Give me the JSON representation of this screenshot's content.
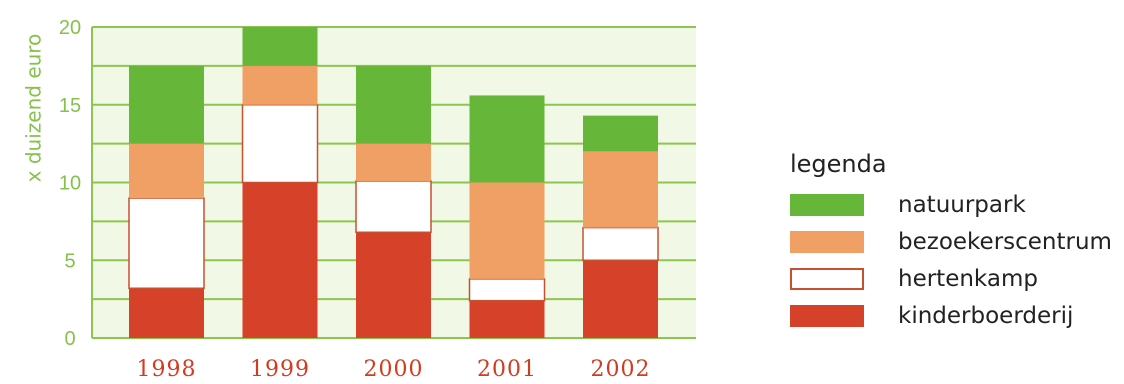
{
  "chart_data": {
    "type": "bar",
    "stacked": true,
    "categories": [
      "1998",
      "1999",
      "2000",
      "2001",
      "2002"
    ],
    "series": [
      {
        "name": "kinderboerderij",
        "color": "#d6412a",
        "values": [
          3.2,
          10,
          6.8,
          2.4,
          5
        ]
      },
      {
        "name": "hertenkamp",
        "color": "#ffffff",
        "border": "#c9502f",
        "values": [
          5.8,
          5,
          3.3,
          1.4,
          2.1
        ]
      },
      {
        "name": "bezoekerscentrum",
        "color": "#f1a065",
        "values": [
          3.5,
          2.5,
          2.4,
          6.2,
          4.9
        ]
      },
      {
        "name": "natuurpark",
        "color": "#66b63a",
        "values": [
          5,
          2.5,
          5,
          5.6,
          2.3
        ]
      }
    ],
    "ylabel": "x duizend euro",
    "ylim": [
      0,
      20
    ],
    "yticks": [
      "0",
      "5",
      "10",
      "15",
      "20"
    ],
    "grid": true,
    "plot_background": "#f1f8e6",
    "grid_color": "#8dc64e",
    "legend_position": "right",
    "legend_title": "legenda"
  }
}
